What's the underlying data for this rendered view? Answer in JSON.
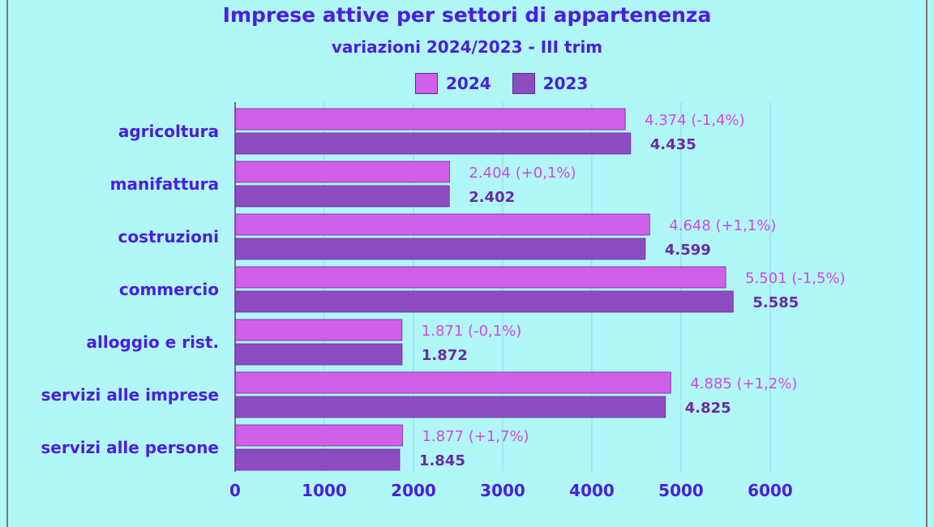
{
  "chart_data": {
    "type": "bar",
    "orientation": "horizontal",
    "title": "Imprese attive per settori di appartenenza",
    "subtitle": "variazioni 2024/2023 - III trim",
    "categories": [
      "agricoltura",
      "manifattura",
      "costruzioni",
      "commercio",
      "alloggio e rist.",
      "servizi alle imprese",
      "servizi alle persone"
    ],
    "series": [
      {
        "name": "2024",
        "color": "#d15fe8",
        "values": [
          4374,
          2404,
          4648,
          5501,
          1871,
          4885,
          1877
        ],
        "labels": [
          "4.374 (-1,4%)",
          "2.404 (+0,1%)",
          "4.648 (+1,1%)",
          "5.501 (-1,5%)",
          "1.871 (-0,1%)",
          "4.885 (+1,2%)",
          "1.877 (+1,7%)"
        ]
      },
      {
        "name": "2023",
        "color": "#8e4cc2",
        "values": [
          4435,
          2402,
          4599,
          5585,
          1872,
          4825,
          1845
        ],
        "labels": [
          "4.435",
          "2.402",
          "4.599",
          "5.585",
          "1.872",
          "4.825",
          "1.845"
        ]
      }
    ],
    "xticks": [
      "0",
      "1000",
      "2000",
      "3000",
      "4000",
      "5000",
      "6000"
    ],
    "xlim": [
      0,
      6000
    ],
    "grid": "vertical",
    "legend_position": "top-center"
  }
}
